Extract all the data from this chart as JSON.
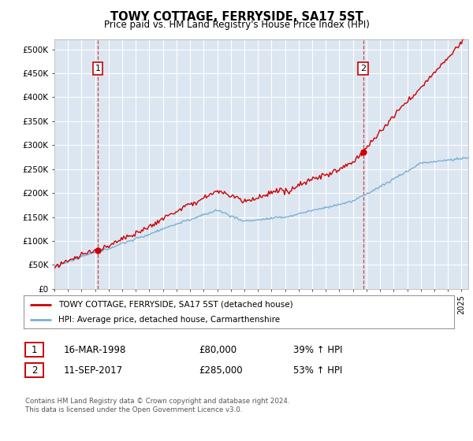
{
  "title": "TOWY COTTAGE, FERRYSIDE, SA17 5ST",
  "subtitle": "Price paid vs. HM Land Registry's House Price Index (HPI)",
  "yticks": [
    0,
    50000,
    100000,
    150000,
    200000,
    250000,
    300000,
    350000,
    400000,
    450000,
    500000
  ],
  "xlim_start": 1995.0,
  "xlim_end": 2025.5,
  "ylim": [
    0,
    520000
  ],
  "red_line_color": "#cc0000",
  "blue_line_color": "#7bafd4",
  "vline1_x": 1998.2,
  "vline2_x": 2017.75,
  "sale1_x": 1998.2,
  "sale1_y": 80000,
  "sale2_x": 2017.75,
  "sale2_y": 285000,
  "legend_line1": "TOWY COTTAGE, FERRYSIDE, SA17 5ST (detached house)",
  "legend_line2": "HPI: Average price, detached house, Carmarthenshire",
  "table_row1": [
    "1",
    "16-MAR-1998",
    "£80,000",
    "39% ↑ HPI"
  ],
  "table_row2": [
    "2",
    "11-SEP-2017",
    "£285,000",
    "53% ↑ HPI"
  ],
  "footnote": "Contains HM Land Registry data © Crown copyright and database right 2024.\nThis data is licensed under the Open Government Licence v3.0.",
  "plot_bg_color": "#dce6f1",
  "grid_color": "#ffffff"
}
